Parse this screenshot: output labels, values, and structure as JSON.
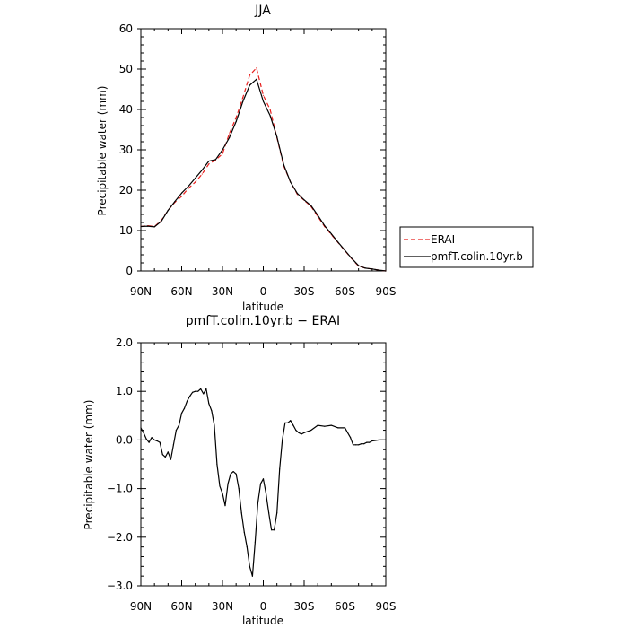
{
  "chart_data": [
    {
      "type": "line",
      "title": "JJA",
      "xlabel": "latitude",
      "ylabel": "Precipitable water (mm)",
      "xlim": [
        90,
        -90
      ],
      "ylim": [
        0,
        60
      ],
      "x_ticks": [
        90,
        60,
        30,
        0,
        -30,
        -60,
        -90
      ],
      "x_tick_labels": [
        "90N",
        "60N",
        "30N",
        "0",
        "30S",
        "60S",
        "90S"
      ],
      "y_ticks": [
        0,
        10,
        20,
        30,
        40,
        50,
        60
      ],
      "y_tick_labels": [
        "0",
        "10",
        "20",
        "30",
        "40",
        "50",
        "60"
      ],
      "legend_position": "right",
      "series": [
        {
          "name": "ERAI",
          "color": "#e8201e",
          "dash": "dashed",
          "x": [
            90,
            85,
            80,
            75,
            70,
            65,
            60,
            55,
            50,
            45,
            40,
            35,
            30,
            25,
            20,
            15,
            10,
            5,
            0,
            -5,
            -10,
            -15,
            -20,
            -25,
            -30,
            -35,
            -40,
            -45,
            -50,
            -55,
            -60,
            -65,
            -70,
            -75,
            -80,
            -85,
            -90
          ],
          "values": [
            11.0,
            11.2,
            11.0,
            12.5,
            15.0,
            17.0,
            18.5,
            20.5,
            22.0,
            24.0,
            26.5,
            27.5,
            29.0,
            34.0,
            38.0,
            43.0,
            48.5,
            50.3,
            43.5,
            40.0,
            33.0,
            26.0,
            22.0,
            19.0,
            17.5,
            16.0,
            13.5,
            11.0,
            9.0,
            7.0,
            5.0,
            3.0,
            1.2,
            0.7,
            0.5,
            0.2,
            0.0
          ]
        },
        {
          "name": "pmfT.colin.10yr.b",
          "color": "#000000",
          "dash": "solid",
          "x": [
            90,
            85,
            80,
            75,
            70,
            65,
            60,
            55,
            50,
            45,
            40,
            35,
            30,
            25,
            20,
            15,
            10,
            5,
            0,
            -5,
            -10,
            -15,
            -20,
            -25,
            -30,
            -35,
            -40,
            -45,
            -50,
            -55,
            -60,
            -65,
            -70,
            -75,
            -80,
            -85,
            -90
          ],
          "values": [
            11.0,
            11.1,
            10.9,
            12.3,
            15.0,
            17.2,
            19.3,
            21.0,
            23.0,
            25.0,
            27.2,
            27.6,
            30.0,
            33.0,
            37.0,
            42.0,
            46.0,
            47.5,
            42.0,
            38.5,
            33.2,
            26.3,
            22.0,
            19.2,
            17.6,
            16.2,
            13.8,
            11.2,
            9.2,
            7.1,
            5.1,
            3.1,
            1.3,
            0.7,
            0.5,
            0.2,
            0.0
          ]
        }
      ]
    },
    {
      "type": "line",
      "title": "pmfT.colin.10yr.b − ERAI",
      "xlabel": "latitude",
      "ylabel": "Precipitable water (mm)",
      "xlim": [
        90,
        -90
      ],
      "ylim": [
        -3.0,
        2.0
      ],
      "x_ticks": [
        90,
        60,
        30,
        0,
        -30,
        -60,
        -90
      ],
      "x_tick_labels": [
        "90N",
        "60N",
        "30N",
        "0",
        "30S",
        "60S",
        "90S"
      ],
      "y_ticks": [
        -3.0,
        -2.0,
        -1.0,
        0.0,
        1.0,
        2.0
      ],
      "y_tick_labels": [
        "−3.0",
        "−2.0",
        "−1.0",
        "0.0",
        "1.0",
        "2.0"
      ],
      "series": [
        {
          "color": "#000000",
          "dash": "solid",
          "x": [
            90,
            88,
            86,
            84,
            82,
            80,
            78,
            76,
            74,
            72,
            70,
            68,
            66,
            64,
            62,
            60,
            58,
            56,
            54,
            52,
            50,
            48,
            46,
            44,
            42,
            40,
            38,
            36,
            34,
            32,
            30,
            28,
            26,
            24,
            22,
            20,
            18,
            16,
            14,
            12,
            10,
            8,
            6,
            4,
            2,
            0,
            -2,
            -4,
            -6,
            -8,
            -10,
            -12,
            -14,
            -16,
            -18,
            -20,
            -22,
            -24,
            -26,
            -28,
            -30,
            -35,
            -40,
            -45,
            -50,
            -55,
            -60,
            -62,
            -64,
            -66,
            -68,
            -70,
            -72,
            -74,
            -76,
            -78,
            -80,
            -85,
            -90
          ],
          "values": [
            0.25,
            0.15,
            0.02,
            -0.05,
            0.05,
            0.0,
            -0.02,
            -0.05,
            -0.3,
            -0.35,
            -0.25,
            -0.4,
            -0.1,
            0.2,
            0.3,
            0.55,
            0.65,
            0.8,
            0.9,
            0.98,
            1.0,
            1.0,
            1.05,
            0.95,
            1.05,
            0.75,
            0.6,
            0.3,
            -0.5,
            -0.95,
            -1.1,
            -1.35,
            -0.9,
            -0.7,
            -0.65,
            -0.7,
            -1.0,
            -1.5,
            -1.9,
            -2.2,
            -2.6,
            -2.8,
            -2.1,
            -1.3,
            -0.9,
            -0.8,
            -1.1,
            -1.5,
            -1.85,
            -1.85,
            -1.5,
            -0.6,
            0.0,
            0.35,
            0.35,
            0.4,
            0.3,
            0.2,
            0.15,
            0.12,
            0.15,
            0.2,
            0.3,
            0.28,
            0.3,
            0.25,
            0.25,
            0.15,
            0.05,
            -0.1,
            -0.1,
            -0.1,
            -0.08,
            -0.08,
            -0.05,
            -0.05,
            -0.02,
            0.0,
            0.0
          ]
        }
      ]
    }
  ]
}
